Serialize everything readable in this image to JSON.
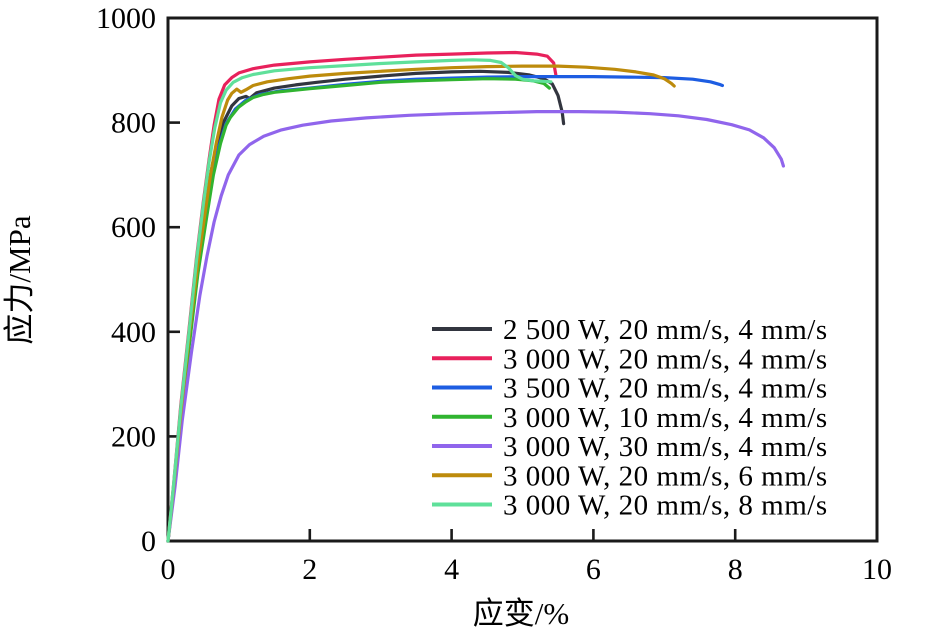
{
  "figure": {
    "background": "#ffffff",
    "frame_color": "#1a1a1a",
    "tick_color": "#1a1a1a"
  },
  "chart_data": {
    "type": "line",
    "title": "",
    "xlabel": "应变/%",
    "ylabel": "应力/MPa",
    "xlim": [
      0,
      10
    ],
    "ylim": [
      0,
      1000
    ],
    "xticks": [
      0,
      2,
      4,
      6,
      8,
      10
    ],
    "yticks": [
      0,
      200,
      400,
      600,
      800,
      1000
    ],
    "grid": false,
    "legend_position": "inside-lower-right",
    "series": [
      {
        "name": "2 500 W, 20 mm/s, 4 mm/s",
        "color": "#32353f",
        "points": [
          [
            0,
            0
          ],
          [
            0.08,
            100
          ],
          [
            0.18,
            240
          ],
          [
            0.3,
            390
          ],
          [
            0.42,
            530
          ],
          [
            0.52,
            630
          ],
          [
            0.6,
            700
          ],
          [
            0.68,
            755
          ],
          [
            0.78,
            800
          ],
          [
            0.9,
            832
          ],
          [
            1.0,
            846
          ],
          [
            1.1,
            850
          ],
          [
            1.15,
            846
          ],
          [
            1.25,
            857
          ],
          [
            1.5,
            866
          ],
          [
            1.8,
            872
          ],
          [
            2.1,
            877
          ],
          [
            2.5,
            883
          ],
          [
            3.0,
            889
          ],
          [
            3.5,
            894
          ],
          [
            4.0,
            897
          ],
          [
            4.4,
            898
          ],
          [
            4.8,
            896
          ],
          [
            5.1,
            891
          ],
          [
            5.3,
            884
          ],
          [
            5.42,
            874
          ],
          [
            5.5,
            852
          ],
          [
            5.56,
            820
          ],
          [
            5.58,
            798
          ]
        ]
      },
      {
        "name": "3 000 W, 20 mm/s, 4 mm/s",
        "color": "#e8215c",
        "points": [
          [
            0,
            0
          ],
          [
            0.08,
            110
          ],
          [
            0.18,
            260
          ],
          [
            0.3,
            410
          ],
          [
            0.4,
            540
          ],
          [
            0.5,
            650
          ],
          [
            0.58,
            730
          ],
          [
            0.65,
            795
          ],
          [
            0.72,
            845
          ],
          [
            0.8,
            872
          ],
          [
            0.9,
            886
          ],
          [
            1.0,
            895
          ],
          [
            1.2,
            903
          ],
          [
            1.5,
            910
          ],
          [
            2.0,
            916
          ],
          [
            2.5,
            921
          ],
          [
            3.0,
            925
          ],
          [
            3.5,
            929
          ],
          [
            4.0,
            931
          ],
          [
            4.5,
            933
          ],
          [
            4.9,
            934
          ],
          [
            5.2,
            931
          ],
          [
            5.35,
            927
          ],
          [
            5.44,
            914
          ],
          [
            5.47,
            892
          ]
        ]
      },
      {
        "name": "3 500 W, 20 mm/s, 4 mm/s",
        "color": "#1d5de2",
        "points": [
          [
            0,
            0
          ],
          [
            0.08,
            100
          ],
          [
            0.18,
            235
          ],
          [
            0.3,
            380
          ],
          [
            0.42,
            515
          ],
          [
            0.52,
            610
          ],
          [
            0.62,
            690
          ],
          [
            0.72,
            755
          ],
          [
            0.82,
            798
          ],
          [
            0.95,
            826
          ],
          [
            1.1,
            843
          ],
          [
            1.3,
            854
          ],
          [
            1.6,
            861
          ],
          [
            2.0,
            866
          ],
          [
            2.5,
            873
          ],
          [
            3.0,
            879
          ],
          [
            3.5,
            883
          ],
          [
            4.0,
            885
          ],
          [
            4.5,
            887
          ],
          [
            5.0,
            888
          ],
          [
            5.5,
            888
          ],
          [
            6.0,
            888
          ],
          [
            6.5,
            887
          ],
          [
            7.0,
            886
          ],
          [
            7.4,
            883
          ],
          [
            7.65,
            878
          ],
          [
            7.78,
            873
          ],
          [
            7.82,
            871
          ]
        ]
      },
      {
        "name": "3 000 W, 10 mm/s, 4 mm/s",
        "color": "#30b430",
        "points": [
          [
            0,
            0
          ],
          [
            0.08,
            95
          ],
          [
            0.18,
            230
          ],
          [
            0.3,
            375
          ],
          [
            0.42,
            510
          ],
          [
            0.54,
            615
          ],
          [
            0.64,
            700
          ],
          [
            0.74,
            760
          ],
          [
            0.82,
            795
          ],
          [
            0.88,
            810
          ],
          [
            0.95,
            822
          ],
          [
            1.0,
            830
          ],
          [
            1.1,
            840
          ],
          [
            1.2,
            848
          ],
          [
            1.35,
            854
          ],
          [
            1.5,
            858
          ],
          [
            2.0,
            865
          ],
          [
            2.5,
            871
          ],
          [
            3.0,
            877
          ],
          [
            3.5,
            880
          ],
          [
            4.0,
            882
          ],
          [
            4.5,
            884
          ],
          [
            4.9,
            883
          ],
          [
            5.15,
            880
          ],
          [
            5.3,
            875
          ],
          [
            5.38,
            866
          ]
        ]
      },
      {
        "name": "3 000 W, 30 mm/s, 4 mm/s",
        "color": "#9065ec",
        "points": [
          [
            0,
            0
          ],
          [
            0.1,
            105
          ],
          [
            0.2,
            230
          ],
          [
            0.33,
            360
          ],
          [
            0.45,
            470
          ],
          [
            0.55,
            545
          ],
          [
            0.65,
            610
          ],
          [
            0.75,
            660
          ],
          [
            0.85,
            700
          ],
          [
            1.0,
            738
          ],
          [
            1.15,
            758
          ],
          [
            1.35,
            774
          ],
          [
            1.6,
            786
          ],
          [
            1.9,
            795
          ],
          [
            2.3,
            803
          ],
          [
            2.8,
            809
          ],
          [
            3.4,
            814
          ],
          [
            4.0,
            817
          ],
          [
            4.6,
            819
          ],
          [
            5.2,
            821
          ],
          [
            5.8,
            821
          ],
          [
            6.3,
            820
          ],
          [
            6.8,
            817
          ],
          [
            7.2,
            813
          ],
          [
            7.6,
            806
          ],
          [
            7.95,
            796
          ],
          [
            8.2,
            786
          ],
          [
            8.4,
            771
          ],
          [
            8.55,
            752
          ],
          [
            8.65,
            730
          ],
          [
            8.68,
            717
          ]
        ]
      },
      {
        "name": "3 000 W, 20 mm/s, 6 mm/s",
        "color": "#bd8b0c",
        "points": [
          [
            0,
            0
          ],
          [
            0.08,
            105
          ],
          [
            0.18,
            245
          ],
          [
            0.3,
            395
          ],
          [
            0.42,
            530
          ],
          [
            0.52,
            625
          ],
          [
            0.6,
            700
          ],
          [
            0.68,
            760
          ],
          [
            0.76,
            810
          ],
          [
            0.84,
            843
          ],
          [
            0.9,
            856
          ],
          [
            0.97,
            864
          ],
          [
            1.03,
            858
          ],
          [
            1.1,
            863
          ],
          [
            1.2,
            871
          ],
          [
            1.4,
            878
          ],
          [
            1.7,
            884
          ],
          [
            2.0,
            889
          ],
          [
            2.5,
            894
          ],
          [
            3.0,
            898
          ],
          [
            3.5,
            902
          ],
          [
            4.0,
            905
          ],
          [
            4.5,
            907
          ],
          [
            5.0,
            908
          ],
          [
            5.5,
            908
          ],
          [
            5.9,
            906
          ],
          [
            6.3,
            902
          ],
          [
            6.6,
            897
          ],
          [
            6.85,
            891
          ],
          [
            7.0,
            884
          ],
          [
            7.1,
            875
          ],
          [
            7.14,
            870
          ]
        ]
      },
      {
        "name": "3 000 W, 20 mm/s, 8 mm/s",
        "color": "#5fe09a",
        "points": [
          [
            0,
            0
          ],
          [
            0.08,
            110
          ],
          [
            0.18,
            255
          ],
          [
            0.3,
            405
          ],
          [
            0.4,
            535
          ],
          [
            0.5,
            645
          ],
          [
            0.58,
            725
          ],
          [
            0.66,
            790
          ],
          [
            0.74,
            838
          ],
          [
            0.82,
            862
          ],
          [
            0.92,
            877
          ],
          [
            1.05,
            886
          ],
          [
            1.2,
            892
          ],
          [
            1.5,
            899
          ],
          [
            2.0,
            905
          ],
          [
            2.5,
            909
          ],
          [
            3.0,
            913
          ],
          [
            3.5,
            916
          ],
          [
            4.0,
            919
          ],
          [
            4.3,
            920
          ],
          [
            4.55,
            919
          ],
          [
            4.7,
            915
          ],
          [
            4.8,
            905
          ],
          [
            4.9,
            890
          ],
          [
            5.0,
            883
          ],
          [
            5.15,
            880
          ],
          [
            5.3,
            879
          ],
          [
            5.4,
            878
          ]
        ]
      }
    ]
  }
}
